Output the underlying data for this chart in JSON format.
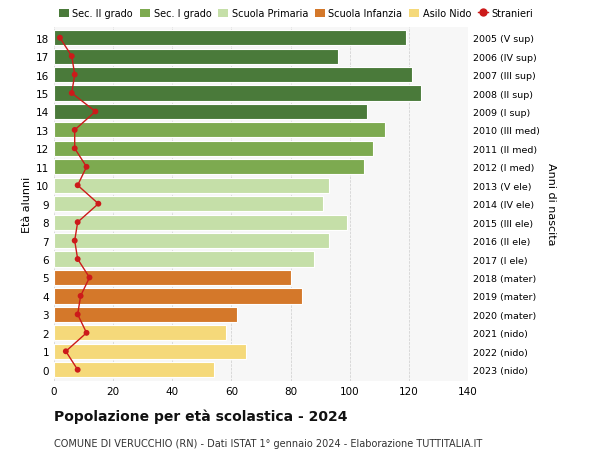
{
  "ages": [
    18,
    17,
    16,
    15,
    14,
    13,
    12,
    11,
    10,
    9,
    8,
    7,
    6,
    5,
    4,
    3,
    2,
    1,
    0
  ],
  "right_labels": [
    "2005 (V sup)",
    "2006 (IV sup)",
    "2007 (III sup)",
    "2008 (II sup)",
    "2009 (I sup)",
    "2010 (III med)",
    "2011 (II med)",
    "2012 (I med)",
    "2013 (V ele)",
    "2014 (IV ele)",
    "2015 (III ele)",
    "2016 (II ele)",
    "2017 (I ele)",
    "2018 (mater)",
    "2019 (mater)",
    "2020 (mater)",
    "2021 (nido)",
    "2022 (nido)",
    "2023 (nido)"
  ],
  "bar_values": [
    119,
    96,
    121,
    124,
    106,
    112,
    108,
    105,
    93,
    91,
    99,
    93,
    88,
    80,
    84,
    62,
    58,
    65,
    54
  ],
  "stranieri": [
    2,
    6,
    7,
    6,
    14,
    7,
    7,
    11,
    8,
    15,
    8,
    7,
    8,
    12,
    9,
    8,
    11,
    4,
    8
  ],
  "color_sec2": "#4a7a3a",
  "color_sec1": "#7daa50",
  "color_prim": "#c5dfa8",
  "color_inf": "#d4782a",
  "color_nido": "#f5d97a",
  "color_stranieri": "#cc1a1a",
  "legend_labels": [
    "Sec. II grado",
    "Sec. I grado",
    "Scuola Primaria",
    "Scuola Infanzia",
    "Asilo Nido",
    "Stranieri"
  ],
  "title_main": "Popolazione per età scolastica - 2024",
  "subtitle": "COMUNE DI VERUCCHIO (RN) - Dati ISTAT 1° gennaio 2024 - Elaborazione TUTTITALIA.IT",
  "ylabel_left": "Età alunni",
  "ylabel_right": "Anni di nascita",
  "xlim": [
    0,
    140
  ],
  "xticks": [
    0,
    20,
    40,
    60,
    80,
    100,
    120,
    140
  ],
  "bg_color": "#ffffff",
  "plot_bg": "#f7f7f7"
}
